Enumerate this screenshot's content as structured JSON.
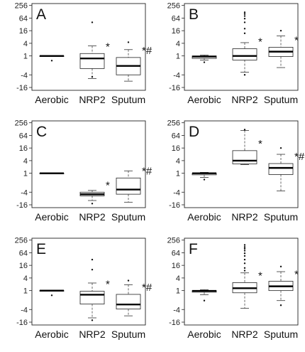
{
  "chart_data": {
    "type": "box",
    "y_ticks": [
      -16,
      -4,
      1,
      4,
      16,
      64,
      256
    ],
    "categories": [
      "Aerobic",
      "NRP2",
      "Sputum"
    ],
    "panels": [
      {
        "letter": "A",
        "groups": [
          {
            "category": "Aerobic",
            "q1": 1,
            "median": 1,
            "q3": 1,
            "whisker_low": 1,
            "whisker_high": 1,
            "outliers": [
              -0.5
            ],
            "sig": ""
          },
          {
            "category": "NRP2",
            "q1": -2,
            "median": 0.2,
            "q3": 1.3,
            "whisker_low": -6,
            "whisker_high": 3,
            "outliers": [
              40,
              -5
            ],
            "sig": "*"
          },
          {
            "category": "Sputum",
            "q1": -4,
            "median": -1.5,
            "q3": 0.5,
            "whisker_low": -8,
            "whisker_high": 2,
            "outliers": [
              4.5
            ],
            "sig": "*#"
          }
        ]
      },
      {
        "letter": "B",
        "groups": [
          {
            "category": "Aerobic",
            "q1": 0.2,
            "median": 0.8,
            "q3": 1,
            "whisker_low": -0.3,
            "whisker_high": 1.1,
            "outliers": [
              -1
            ],
            "sig": ""
          },
          {
            "category": "NRP2",
            "q1": -0.3,
            "median": 1,
            "q3": 2.2,
            "whisker_low": -3,
            "whisker_high": 4.3,
            "outliers": [
              120,
              100,
              80,
              60,
              40,
              20,
              12,
              -4
            ],
            "sig": "*"
          },
          {
            "category": "Sputum",
            "q1": 0.8,
            "median": 1.6,
            "q3": 2.6,
            "whisker_low": -1.8,
            "whisker_high": 9,
            "outliers": [
              16
            ],
            "sig": "*"
          }
        ]
      },
      {
        "letter": "C",
        "groups": [
          {
            "category": "Aerobic",
            "q1": 1,
            "median": 1,
            "q3": 1,
            "whisker_low": 1,
            "whisker_high": 1,
            "outliers": [],
            "sig": ""
          },
          {
            "category": "NRP2",
            "q1": -6,
            "median": -5,
            "q3": -4,
            "whisker_low": -10,
            "whisker_high": -3.3,
            "outliers": [
              -14
            ],
            "sig": "*"
          },
          {
            "category": "Sputum",
            "q1": -5,
            "median": -3,
            "q3": -0.5,
            "whisker_low": -12,
            "whisker_high": 1.3,
            "outliers": [],
            "sig": "*#"
          }
        ]
      },
      {
        "letter": "D",
        "groups": [
          {
            "category": "Aerobic",
            "q1": 0.5,
            "median": 1,
            "q3": 1,
            "whisker_low": -0.3,
            "whisker_high": 1.1,
            "outliers": [
              -1
            ],
            "sig": ""
          },
          {
            "category": "NRP2",
            "q1": 2.8,
            "median": 4,
            "q3": 12,
            "whisker_low": 2.6,
            "whisker_high": 110,
            "outliers": [
              120
            ],
            "sig": "*"
          },
          {
            "category": "Sputum",
            "q1": 0.6,
            "median": 1.8,
            "q3": 2.9,
            "whisker_low": -3.5,
            "whisker_high": 8,
            "outliers": [
              16
            ],
            "sig": "*#"
          }
        ]
      },
      {
        "letter": "E",
        "groups": [
          {
            "category": "Aerobic",
            "q1": 1,
            "median": 1,
            "q3": 1,
            "whisker_low": 1,
            "whisker_high": 1,
            "outliers": [
              -0.5
            ],
            "sig": ""
          },
          {
            "category": "NRP2",
            "q1": -2.2,
            "median": -0.3,
            "q3": 0.8,
            "whisker_low": -10,
            "whisker_high": 2.3,
            "outliers": [
              30,
              10,
              -13
            ],
            "sig": "*"
          },
          {
            "category": "Sputum",
            "q1": -3.8,
            "median": -2.3,
            "q3": -0.2,
            "whisker_low": -8,
            "whisker_high": 1.9,
            "outliers": [
              3
            ],
            "sig": "*#"
          }
        ]
      },
      {
        "letter": "F",
        "groups": [
          {
            "category": "Aerobic",
            "q1": 0.5,
            "median": 0.9,
            "q3": 1,
            "whisker_low": -0.3,
            "whisker_high": 1.1,
            "outliers": [
              -1.5
            ],
            "sig": ""
          },
          {
            "category": "NRP2",
            "q1": 0.3,
            "median": 1.3,
            "q3": 2.4,
            "whisker_low": -3.5,
            "whisker_high": 7,
            "outliers": [
              150,
              120,
              100,
              80,
              60,
              45,
              30,
              20,
              12,
              9
            ],
            "sig": "*"
          },
          {
            "category": "Sputum",
            "q1": 1,
            "median": 1.6,
            "q3": 2.8,
            "whisker_low": -1.5,
            "whisker_high": 8,
            "outliers": [
              14,
              -2.5
            ],
            "sig": "*"
          }
        ]
      }
    ]
  }
}
